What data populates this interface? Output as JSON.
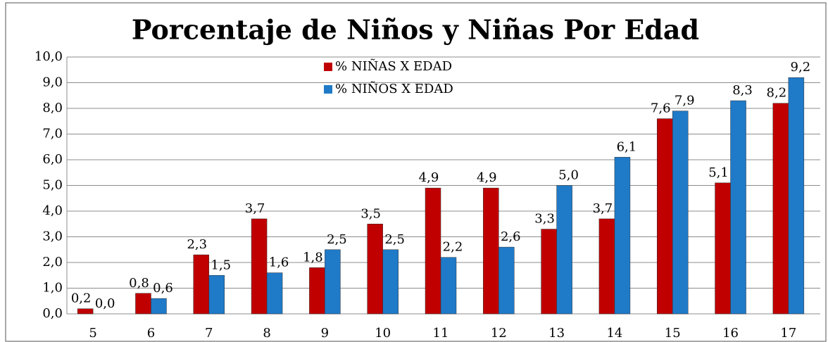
{
  "chart_data": {
    "type": "bar",
    "title": "Porcentaje de Niños y  Niñas Por Edad",
    "categories": [
      "5",
      "6",
      "7",
      "8",
      "9",
      "10",
      "11",
      "12",
      "13",
      "14",
      "15",
      "16",
      "17"
    ],
    "series": [
      {
        "name": "% NIÑAS X EDAD",
        "color": "#c00000",
        "values": [
          0.2,
          0.8,
          2.3,
          3.7,
          1.8,
          3.5,
          4.9,
          4.9,
          3.3,
          3.7,
          7.6,
          5.1,
          8.2
        ],
        "value_labels": [
          "0,2",
          "0,8",
          "2,3",
          "3,7",
          "1,8",
          "3,5",
          "4,9",
          "4,9",
          "3,3",
          "3,7",
          "7,6",
          "5,1",
          "8,2"
        ]
      },
      {
        "name": "% NIÑOS X EDAD",
        "color": "#1f7ac8",
        "values": [
          0.0,
          0.6,
          1.5,
          1.6,
          2.5,
          2.5,
          2.2,
          2.6,
          5.0,
          6.1,
          7.9,
          8.3,
          9.2
        ],
        "value_labels": [
          "0,0",
          "0,6",
          "1,5",
          "1,6",
          "2,5",
          "2,5",
          "2,2",
          "2,6",
          "5,0",
          "6,1",
          "7,9",
          "8,3",
          "9,2"
        ]
      }
    ],
    "ylim": [
      0,
      10
    ],
    "yticks": [
      {
        "value": 0,
        "label": "0,0"
      },
      {
        "value": 1,
        "label": "1,0"
      },
      {
        "value": 2,
        "label": "2,0"
      },
      {
        "value": 3,
        "label": "3,0"
      },
      {
        "value": 4,
        "label": "4,0"
      },
      {
        "value": 5,
        "label": "5,0"
      },
      {
        "value": 6,
        "label": "6,0"
      },
      {
        "value": 7,
        "label": "7,0"
      },
      {
        "value": 8,
        "label": "8,0"
      },
      {
        "value": 9,
        "label": "9,0"
      },
      {
        "value": 10,
        "label": "10,0"
      }
    ],
    "grid": true,
    "legend": "top"
  }
}
